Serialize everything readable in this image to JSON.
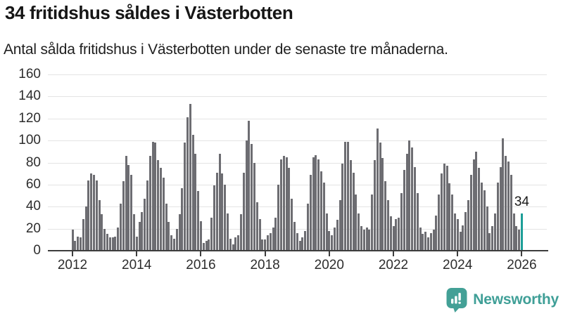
{
  "header": {
    "title": "34 fritidshus såldes i Västerbotten",
    "subtitle": "Antal sålda fritidshus i Västerbotten under de senaste tre månaderna."
  },
  "chart_data": {
    "type": "bar",
    "title": "34 fritidshus såldes i Västerbotten",
    "subtitle": "Antal sålda fritidshus i Västerbotten under de senaste tre månaderna.",
    "x_frequency": "monthly",
    "x_start_year": 2012,
    "xticks": [
      "2012",
      "2014",
      "2016",
      "2018",
      "2020",
      "2022",
      "2024",
      "2026"
    ],
    "yticks": [
      0,
      20,
      40,
      60,
      80,
      100,
      120,
      140,
      160
    ],
    "ylim": [
      0,
      160
    ],
    "grid": "horizontal",
    "bar_color": "#6d6d72",
    "highlight_color": "#1d9e98",
    "series": [
      {
        "name": "Antal sålda fritidshus",
        "values": [
          19,
          9,
          13,
          12,
          29,
          40,
          64,
          70,
          69,
          64,
          46,
          33,
          20,
          15,
          12,
          12,
          13,
          21,
          43,
          63,
          86,
          78,
          69,
          33,
          13,
          26,
          35,
          47,
          64,
          86,
          99,
          98,
          82,
          75,
          66,
          43,
          26,
          14,
          11,
          20,
          33,
          57,
          98,
          121,
          133,
          105,
          88,
          54,
          27,
          7,
          9,
          10,
          30,
          59,
          71,
          88,
          70,
          60,
          34,
          11,
          6,
          12,
          14,
          33,
          71,
          100,
          118,
          97,
          80,
          44,
          29,
          10,
          10,
          14,
          16,
          21,
          30,
          60,
          83,
          86,
          85,
          75,
          47,
          26,
          16,
          9,
          12,
          18,
          43,
          69,
          85,
          87,
          83,
          72,
          62,
          34,
          18,
          14,
          21,
          28,
          46,
          79,
          99,
          99,
          82,
          71,
          51,
          34,
          22,
          19,
          21,
          19,
          51,
          82,
          111,
          98,
          84,
          63,
          46,
          31,
          22,
          29,
          30,
          52,
          73,
          88,
          100,
          94,
          76,
          52,
          21,
          15,
          17,
          12,
          16,
          19,
          32,
          51,
          70,
          79,
          77,
          61,
          51,
          34,
          29,
          17,
          23,
          35,
          46,
          69,
          83,
          90,
          75,
          62,
          55,
          40,
          16,
          22,
          34,
          62,
          76,
          102,
          86,
          81,
          69,
          34,
          22,
          19
        ]
      }
    ],
    "highlight": {
      "label": "34",
      "value": 34
    }
  },
  "footer": {
    "brand": "Newsworthy",
    "brand_color": "#3f9f97",
    "icon_color": "#43a096"
  }
}
